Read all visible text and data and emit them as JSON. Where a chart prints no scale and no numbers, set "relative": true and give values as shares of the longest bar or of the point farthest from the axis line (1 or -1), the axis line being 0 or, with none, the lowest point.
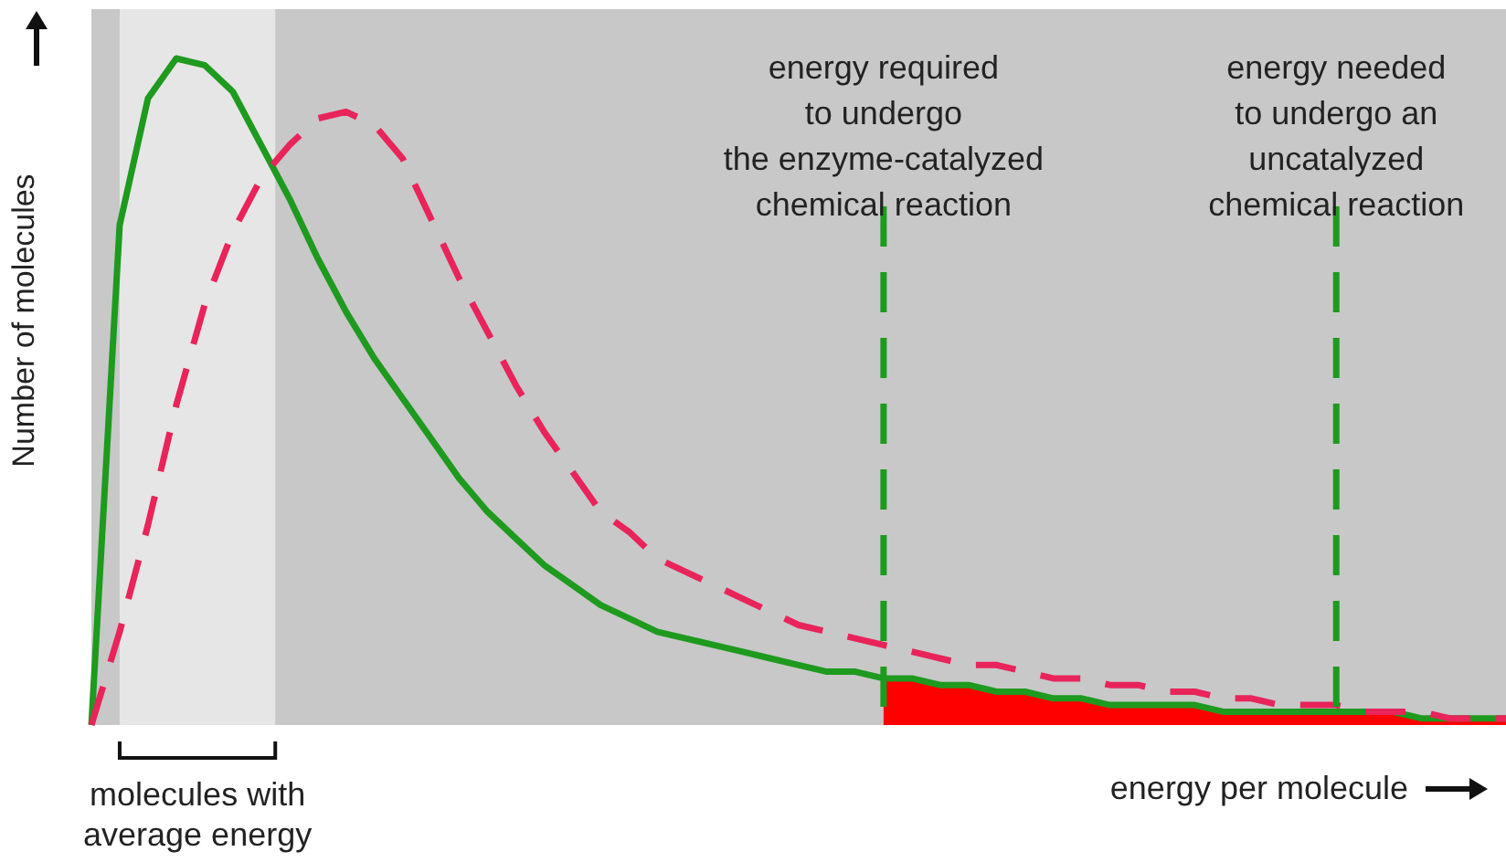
{
  "chart_data": {
    "type": "line",
    "relative": true,
    "xlabel": "energy per molecule",
    "ylabel": "Number of molecules",
    "categories": [
      null,
      null,
      null,
      null,
      null,
      null,
      null,
      null,
      null,
      null,
      null,
      null,
      null,
      null,
      null,
      null,
      null,
      null,
      null,
      null,
      null,
      null,
      null,
      null,
      null,
      null,
      null,
      null,
      null,
      null,
      null,
      null,
      null,
      null,
      null,
      null,
      null,
      null,
      null,
      null,
      null,
      null,
      null,
      null,
      null,
      null,
      null,
      null,
      null,
      null,
      null
    ],
    "series": [
      {
        "type": "area",
        "color": "#ff0000",
        "values": [
          null,
          null,
          null,
          null,
          null,
          null,
          null,
          null,
          null,
          null,
          null,
          null,
          null,
          null,
          null,
          null,
          null,
          null,
          null,
          null,
          null,
          null,
          null,
          null,
          null,
          null,
          null,
          null,
          0.07,
          0.07,
          0.06,
          0.06,
          0.05,
          0.05,
          0.04,
          0.04,
          0.03,
          0.03,
          0.03,
          0.03,
          0.02,
          0.02,
          0.02,
          0.02,
          0.02,
          0.02,
          0.02,
          0.01,
          0.01,
          0.01,
          0.01
        ]
      },
      {
        "color": "#1e9a1e",
        "line_style": "solid",
        "values": [
          0,
          0.75,
          0.94,
          1,
          0.99,
          0.95,
          0.87,
          0.79,
          0.7,
          0.62,
          0.55,
          0.49,
          0.43,
          0.37,
          0.32,
          0.28,
          0.24,
          0.21,
          0.18,
          0.16,
          0.14,
          0.13,
          0.12,
          0.11,
          0.1,
          0.09,
          0.08,
          0.08,
          0.07,
          0.07,
          0.06,
          0.06,
          0.05,
          0.05,
          0.04,
          0.04,
          0.03,
          0.03,
          0.03,
          0.03,
          0.02,
          0.02,
          0.02,
          0.02,
          0.02,
          0.02,
          0.02,
          0.01,
          0.01,
          0.01,
          0.01
        ]
      },
      {
        "color": "#e8245a",
        "line_style": "dashed",
        "values": [
          0,
          0.14,
          0.3,
          0.48,
          0.63,
          0.74,
          0.82,
          0.87,
          0.91,
          0.92,
          0.9,
          0.85,
          0.76,
          0.67,
          0.59,
          0.51,
          0.44,
          0.38,
          0.32,
          0.29,
          0.25,
          0.23,
          0.21,
          0.19,
          0.17,
          0.15,
          0.14,
          0.13,
          0.12,
          0.11,
          0.1,
          0.09,
          0.09,
          0.08,
          0.07,
          0.07,
          0.06,
          0.06,
          0.05,
          0.05,
          0.04,
          0.04,
          0.03,
          0.03,
          0.03,
          0.02,
          0.02,
          0.02,
          0.01,
          0.01,
          0.01
        ]
      }
    ],
    "annotations": [
      "energy required\nto undergo\nthe enzyme-catalyzed\nchemical reaction",
      "energy needed\nto undergo an\nuncatalyzed\nchemical reaction",
      "molecules with\naverage energy"
    ]
  }
}
